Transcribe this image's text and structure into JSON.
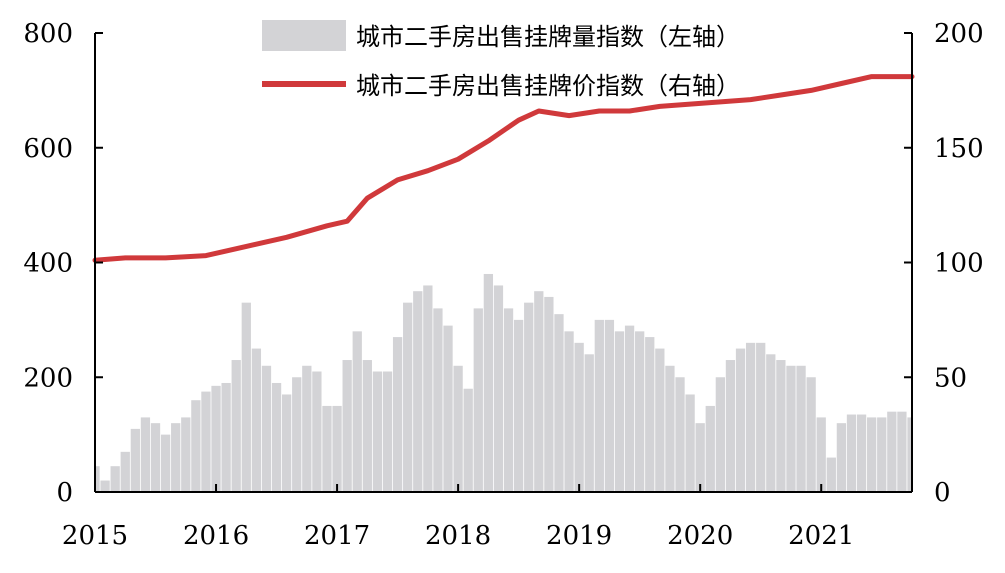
{
  "chart_data": {
    "type": "bar+line",
    "title": "",
    "x_axis": {
      "label": "",
      "ticks": [
        "2015",
        "2016",
        "2017",
        "2018",
        "2019",
        "2020",
        "2021"
      ],
      "range": [
        "2015-01",
        "2021-10"
      ]
    },
    "y_left": {
      "label": "",
      "ticks": [
        "0",
        "200",
        "400",
        "600",
        "800"
      ],
      "ylim": [
        0,
        800
      ]
    },
    "y_right": {
      "label": "",
      "ticks": [
        "0",
        "50",
        "100",
        "150",
        "200"
      ],
      "ylim": [
        0,
        200
      ]
    },
    "grid": false,
    "legend_position": "top",
    "series": [
      {
        "name": "城市二手房出售挂牌量指数（左轴）",
        "type": "bar",
        "axis": "left",
        "color": "#d3d3d6",
        "points": [
          [
            "2015-01",
            45
          ],
          [
            "2015-02",
            20
          ],
          [
            "2015-03",
            45
          ],
          [
            "2015-04",
            70
          ],
          [
            "2015-05",
            110
          ],
          [
            "2015-06",
            130
          ],
          [
            "2015-07",
            120
          ],
          [
            "2015-08",
            100
          ],
          [
            "2015-09",
            120
          ],
          [
            "2015-10",
            130
          ],
          [
            "2015-11",
            160
          ],
          [
            "2015-12",
            175
          ],
          [
            "2016-01",
            185
          ],
          [
            "2016-02",
            190
          ],
          [
            "2016-03",
            230
          ],
          [
            "2016-04",
            330
          ],
          [
            "2016-05",
            250
          ],
          [
            "2016-06",
            220
          ],
          [
            "2016-07",
            190
          ],
          [
            "2016-08",
            170
          ],
          [
            "2016-09",
            200
          ],
          [
            "2016-10",
            220
          ],
          [
            "2016-11",
            210
          ],
          [
            "2016-12",
            150
          ],
          [
            "2017-01",
            150
          ],
          [
            "2017-02",
            230
          ],
          [
            "2017-03",
            280
          ],
          [
            "2017-04",
            230
          ],
          [
            "2017-05",
            210
          ],
          [
            "2017-06",
            210
          ],
          [
            "2017-07",
            270
          ],
          [
            "2017-08",
            330
          ],
          [
            "2017-09",
            350
          ],
          [
            "2017-10",
            360
          ],
          [
            "2017-11",
            320
          ],
          [
            "2017-12",
            290
          ],
          [
            "2018-01",
            220
          ],
          [
            "2018-02",
            180
          ],
          [
            "2018-03",
            320
          ],
          [
            "2018-04",
            380
          ],
          [
            "2018-05",
            360
          ],
          [
            "2018-06",
            320
          ],
          [
            "2018-07",
            300
          ],
          [
            "2018-08",
            330
          ],
          [
            "2018-09",
            350
          ],
          [
            "2018-10",
            340
          ],
          [
            "2018-11",
            310
          ],
          [
            "2018-12",
            280
          ],
          [
            "2019-01",
            260
          ],
          [
            "2019-02",
            240
          ],
          [
            "2019-03",
            300
          ],
          [
            "2019-04",
            300
          ],
          [
            "2019-05",
            280
          ],
          [
            "2019-06",
            290
          ],
          [
            "2019-07",
            280
          ],
          [
            "2019-08",
            270
          ],
          [
            "2019-09",
            250
          ],
          [
            "2019-10",
            220
          ],
          [
            "2019-11",
            200
          ],
          [
            "2019-12",
            170
          ],
          [
            "2020-01",
            120
          ],
          [
            "2020-02",
            150
          ],
          [
            "2020-03",
            200
          ],
          [
            "2020-04",
            230
          ],
          [
            "2020-05",
            250
          ],
          [
            "2020-06",
            260
          ],
          [
            "2020-07",
            260
          ],
          [
            "2020-08",
            240
          ],
          [
            "2020-09",
            230
          ],
          [
            "2020-10",
            220
          ],
          [
            "2020-11",
            220
          ],
          [
            "2020-12",
            200
          ],
          [
            "2021-01",
            130
          ],
          [
            "2021-02",
            60
          ],
          [
            "2021-03",
            120
          ],
          [
            "2021-04",
            135
          ],
          [
            "2021-05",
            135
          ],
          [
            "2021-06",
            130
          ],
          [
            "2021-07",
            130
          ],
          [
            "2021-08",
            140
          ],
          [
            "2021-09",
            140
          ],
          [
            "2021-10",
            130
          ]
        ]
      },
      {
        "name": "城市二手房出售挂牌价指数（右轴）",
        "type": "line",
        "axis": "right",
        "color": "#d0393b",
        "points": [
          [
            "2015-01",
            101
          ],
          [
            "2015-04",
            102
          ],
          [
            "2015-08",
            102
          ],
          [
            "2015-12",
            103
          ],
          [
            "2016-04",
            107
          ],
          [
            "2016-08",
            111
          ],
          [
            "2016-12",
            116
          ],
          [
            "2017-02",
            118
          ],
          [
            "2017-04",
            128
          ],
          [
            "2017-07",
            136
          ],
          [
            "2017-10",
            140
          ],
          [
            "2018-01",
            145
          ],
          [
            "2018-04",
            153
          ],
          [
            "2018-07",
            162
          ],
          [
            "2018-09",
            166
          ],
          [
            "2018-12",
            164
          ],
          [
            "2019-03",
            166
          ],
          [
            "2019-06",
            166
          ],
          [
            "2019-09",
            168
          ],
          [
            "2019-12",
            169
          ],
          [
            "2020-03",
            170
          ],
          [
            "2020-06",
            171
          ],
          [
            "2020-09",
            173
          ],
          [
            "2020-12",
            175
          ],
          [
            "2021-03",
            178
          ],
          [
            "2021-06",
            181
          ],
          [
            "2021-08",
            181
          ],
          [
            "2021-10",
            181
          ]
        ]
      }
    ]
  }
}
